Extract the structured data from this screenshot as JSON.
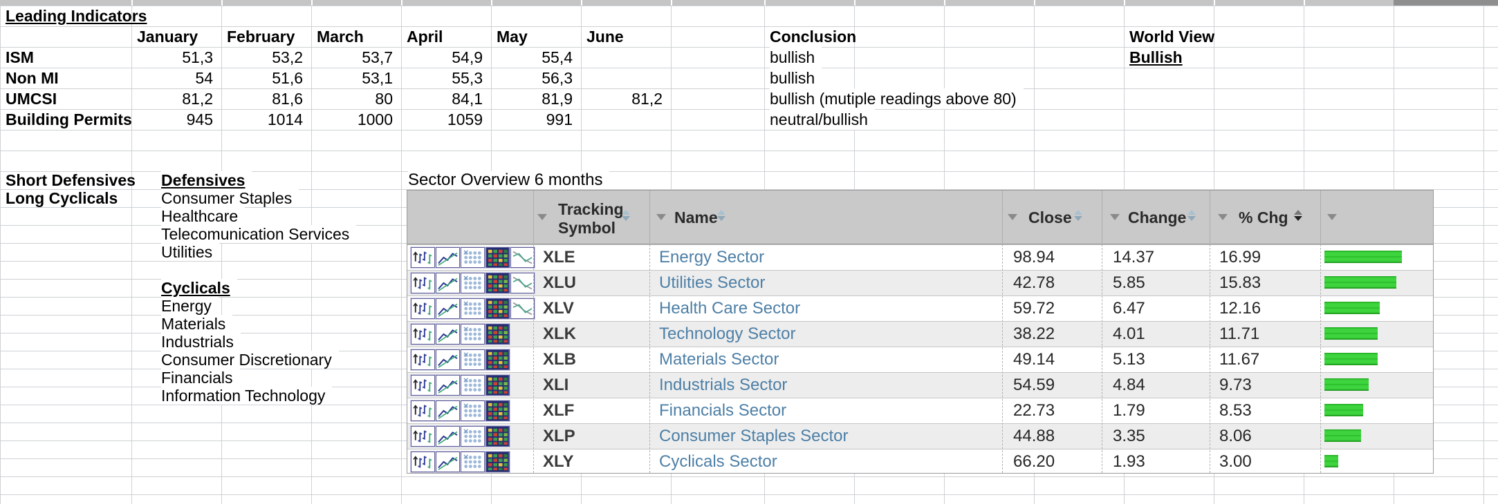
{
  "leading_indicators": {
    "title": "Leading Indicators",
    "months": [
      "January",
      "February",
      "March",
      "April",
      "May",
      "June"
    ],
    "conclusion_header": "Conclusion",
    "world_view_header": "World View",
    "world_view_value": "Bullish",
    "rows": [
      {
        "label": "ISM",
        "values": [
          "51,3",
          "53,2",
          "53,7",
          "54,9",
          "55,4",
          ""
        ],
        "conclusion": "bullish"
      },
      {
        "label": "Non MI",
        "values": [
          "54",
          "51,6",
          "53,1",
          "55,3",
          "56,3",
          ""
        ],
        "conclusion": "bullish"
      },
      {
        "label": "UMCSI",
        "values": [
          "81,2",
          "81,6",
          "80",
          "84,1",
          "81,9",
          "81,2"
        ],
        "conclusion": "bullish (mutiple readings above 80)"
      },
      {
        "label": "Building Permits",
        "values": [
          "945",
          "1014",
          "1000",
          "1059",
          "991",
          ""
        ],
        "conclusion": "neutral/bullish"
      }
    ]
  },
  "strategy": {
    "short_label": "Short Defensives",
    "long_label": "Long Cyclicals"
  },
  "defensives": {
    "title": "Defensives",
    "items": [
      "Consumer Staples",
      "Healthcare",
      "Telecomunication Services",
      "Utilities"
    ]
  },
  "cyclicals": {
    "title": "Cyclicals",
    "items": [
      "Energy",
      "Materials",
      "Industrials",
      "Consumer Discretionary",
      "Financials",
      "Information Technology"
    ]
  },
  "sector_overview": {
    "title": "Sector Overview 6 months",
    "columns": {
      "tracking_symbol": "Tracking Symbol",
      "name": "Name",
      "close": "Close",
      "change": "Change",
      "pct_chg": "% Chg"
    },
    "header_icons": [
      "filter-dropdown-icon",
      "sort-arrows-icon"
    ],
    "row_icon_names": [
      "price-bars-chart-icon",
      "line-chart-icon",
      "dot-grid-icon",
      "heatmap-icon",
      "compare-lines-icon"
    ],
    "rows": [
      {
        "symbol": "XLE",
        "name": "Energy Sector",
        "close": "98.94",
        "change": "14.37",
        "pct_chg": "16.99",
        "pct": 16.99,
        "icon_count": 5
      },
      {
        "symbol": "XLU",
        "name": "Utilities Sector",
        "close": "42.78",
        "change": "5.85",
        "pct_chg": "15.83",
        "pct": 15.83,
        "icon_count": 5
      },
      {
        "symbol": "XLV",
        "name": "Health Care Sector",
        "close": "59.72",
        "change": "6.47",
        "pct_chg": "12.16",
        "pct": 12.16,
        "icon_count": 5
      },
      {
        "symbol": "XLK",
        "name": "Technology Sector",
        "close": "38.22",
        "change": "4.01",
        "pct_chg": "11.71",
        "pct": 11.71,
        "icon_count": 4
      },
      {
        "symbol": "XLB",
        "name": "Materials Sector",
        "close": "49.14",
        "change": "5.13",
        "pct_chg": "11.67",
        "pct": 11.67,
        "icon_count": 4
      },
      {
        "symbol": "XLI",
        "name": "Industrials Sector",
        "close": "54.59",
        "change": "4.84",
        "pct_chg": "9.73",
        "pct": 9.73,
        "icon_count": 4
      },
      {
        "symbol": "XLF",
        "name": "Financials Sector",
        "close": "22.73",
        "change": "1.79",
        "pct_chg": "8.53",
        "pct": 8.53,
        "icon_count": 4
      },
      {
        "symbol": "XLP",
        "name": "Consumer Staples Sector",
        "close": "44.88",
        "change": "3.35",
        "pct_chg": "8.06",
        "pct": 8.06,
        "icon_count": 4
      },
      {
        "symbol": "XLY",
        "name": "Cyclicals Sector",
        "close": "66.20",
        "change": "1.93",
        "pct_chg": "3.00",
        "pct": 3.0,
        "icon_count": 4
      }
    ],
    "colors": {
      "bar_green": "#33cc33",
      "header_bg": "#c9c9c9",
      "name_link": "#4d7fa6",
      "row_alt_bg": "#ededed"
    }
  }
}
